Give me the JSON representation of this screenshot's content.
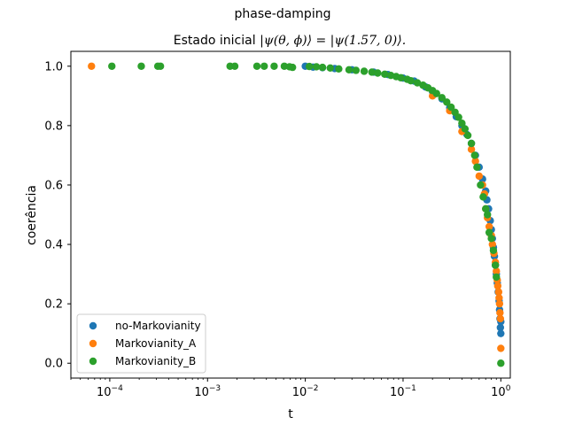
{
  "chart_data": {
    "type": "scatter",
    "suptitle": "phase-damping",
    "title_prefix": "Estado inicial ",
    "title_math": "|ψ(θ, ϕ)⟩ = |ψ(1.57, 0)⟩.",
    "xlabel": "t",
    "ylabel": "coerência",
    "xscale": "log",
    "xlim": [
      4e-05,
      1.25
    ],
    "ylim": [
      -0.05,
      1.05
    ],
    "xticks": [
      {
        "value": 0.0001,
        "base": "10",
        "exp": "−4"
      },
      {
        "value": 0.001,
        "base": "10",
        "exp": "−3"
      },
      {
        "value": 0.01,
        "base": "10",
        "exp": "−2"
      },
      {
        "value": 0.1,
        "base": "10",
        "exp": "−1"
      },
      {
        "value": 1,
        "base": "10",
        "exp": "0"
      }
    ],
    "yticks": [
      {
        "value": 0.0,
        "label": "0.0"
      },
      {
        "value": 0.2,
        "label": "0.2"
      },
      {
        "value": 0.4,
        "label": "0.4"
      },
      {
        "value": 0.6,
        "label": "0.6"
      },
      {
        "value": 0.8,
        "label": "0.8"
      },
      {
        "value": 1.0,
        "label": "1.0"
      }
    ],
    "grid": false,
    "legend_position": "lower-left",
    "series": [
      {
        "name": "no-Markovianity",
        "color": "#1f77b4",
        "points": [
          [
            0.01,
            1.0
          ],
          [
            0.012,
            0.997
          ],
          [
            0.015,
            0.995
          ],
          [
            0.02,
            0.992
          ],
          [
            0.03,
            0.988
          ],
          [
            0.05,
            0.98
          ],
          [
            0.07,
            0.972
          ],
          [
            0.1,
            0.96
          ],
          [
            0.13,
            0.95
          ],
          [
            0.17,
            0.93
          ],
          [
            0.2,
            0.915
          ],
          [
            0.25,
            0.89
          ],
          [
            0.3,
            0.86
          ],
          [
            0.35,
            0.83
          ],
          [
            0.4,
            0.8
          ],
          [
            0.45,
            0.77
          ],
          [
            0.5,
            0.74
          ],
          [
            0.55,
            0.7
          ],
          [
            0.6,
            0.66
          ],
          [
            0.65,
            0.62
          ],
          [
            0.7,
            0.58
          ],
          [
            0.72,
            0.55
          ],
          [
            0.75,
            0.52
          ],
          [
            0.78,
            0.48
          ],
          [
            0.8,
            0.45
          ],
          [
            0.82,
            0.42
          ],
          [
            0.84,
            0.39
          ],
          [
            0.86,
            0.36
          ],
          [
            0.88,
            0.33
          ],
          [
            0.9,
            0.3
          ],
          [
            0.92,
            0.27
          ],
          [
            0.94,
            0.24
          ],
          [
            0.96,
            0.21
          ],
          [
            0.97,
            0.18
          ],
          [
            0.98,
            0.15
          ],
          [
            0.99,
            0.12
          ],
          [
            1.0,
            0.1
          ],
          [
            1.0,
            0.14
          ]
        ]
      },
      {
        "name": "Markovianity_A",
        "color": "#ff7f0e",
        "points": [
          [
            6.5e-05,
            1.0
          ],
          [
            0.2,
            0.9
          ],
          [
            0.3,
            0.85
          ],
          [
            0.4,
            0.78
          ],
          [
            0.5,
            0.72
          ],
          [
            0.55,
            0.68
          ],
          [
            0.6,
            0.63
          ],
          [
            0.65,
            0.6
          ],
          [
            0.68,
            0.57
          ],
          [
            0.7,
            0.52
          ],
          [
            0.73,
            0.49
          ],
          [
            0.76,
            0.46
          ],
          [
            0.8,
            0.43
          ],
          [
            0.82,
            0.4
          ],
          [
            0.85,
            0.37
          ],
          [
            0.88,
            0.34
          ],
          [
            0.9,
            0.31
          ],
          [
            0.92,
            0.28
          ],
          [
            0.93,
            0.26
          ],
          [
            0.95,
            0.24
          ],
          [
            0.96,
            0.22
          ],
          [
            0.97,
            0.2
          ],
          [
            0.98,
            0.17
          ],
          [
            0.99,
            0.15
          ],
          [
            1.0,
            0.05
          ]
        ]
      },
      {
        "name": "Markovianity_B",
        "color": "#2ca02c",
        "points": [
          [
            0.000105,
            1.0
          ],
          [
            0.00021,
            1.0
          ],
          [
            0.00031,
            1.0
          ],
          [
            0.00033,
            1.0
          ],
          [
            0.0017,
            1.0
          ],
          [
            0.0019,
            1.0
          ],
          [
            0.0032,
            1.0
          ],
          [
            0.0038,
            1.0
          ],
          [
            0.0048,
            1.0
          ],
          [
            0.0061,
            1.0
          ],
          [
            0.0069,
            0.998
          ],
          [
            0.0074,
            0.996
          ],
          [
            0.011,
            0.999
          ],
          [
            0.013,
            0.998
          ],
          [
            0.015,
            0.996
          ],
          [
            0.018,
            0.994
          ],
          [
            0.022,
            0.991
          ],
          [
            0.028,
            0.988
          ],
          [
            0.033,
            0.986
          ],
          [
            0.04,
            0.983
          ],
          [
            0.048,
            0.98
          ],
          [
            0.055,
            0.977
          ],
          [
            0.065,
            0.973
          ],
          [
            0.075,
            0.969
          ],
          [
            0.085,
            0.965
          ],
          [
            0.095,
            0.961
          ],
          [
            0.11,
            0.956
          ],
          [
            0.12,
            0.951
          ],
          [
            0.14,
            0.944
          ],
          [
            0.16,
            0.936
          ],
          [
            0.18,
            0.927
          ],
          [
            0.2,
            0.918
          ],
          [
            0.22,
            0.908
          ],
          [
            0.25,
            0.894
          ],
          [
            0.28,
            0.879
          ],
          [
            0.31,
            0.862
          ],
          [
            0.34,
            0.845
          ],
          [
            0.37,
            0.828
          ],
          [
            0.4,
            0.808
          ],
          [
            0.43,
            0.789
          ],
          [
            0.46,
            0.767
          ],
          [
            0.5,
            0.74
          ],
          [
            0.54,
            0.7
          ],
          [
            0.57,
            0.66
          ],
          [
            0.62,
            0.6
          ],
          [
            0.66,
            0.56
          ],
          [
            0.7,
            0.52
          ],
          [
            0.73,
            0.5
          ],
          [
            0.76,
            0.44
          ],
          [
            0.8,
            0.42
          ],
          [
            0.84,
            0.38
          ],
          [
            0.88,
            0.33
          ],
          [
            0.9,
            0.29
          ],
          [
            1.0,
            0.0
          ]
        ]
      }
    ]
  }
}
